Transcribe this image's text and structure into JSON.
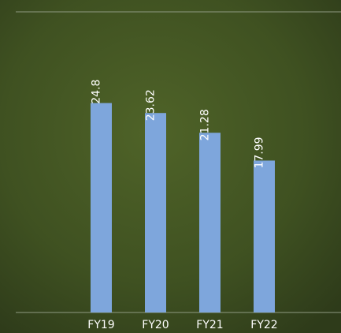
{
  "chart_data": {
    "type": "bar",
    "categories": [
      "FY19",
      "FY20",
      "FY21",
      "FY22"
    ],
    "values": [
      24.8,
      23.62,
      21.28,
      17.99
    ],
    "color": "#7ea6dc",
    "ylim": [
      0,
      35.6
    ]
  }
}
